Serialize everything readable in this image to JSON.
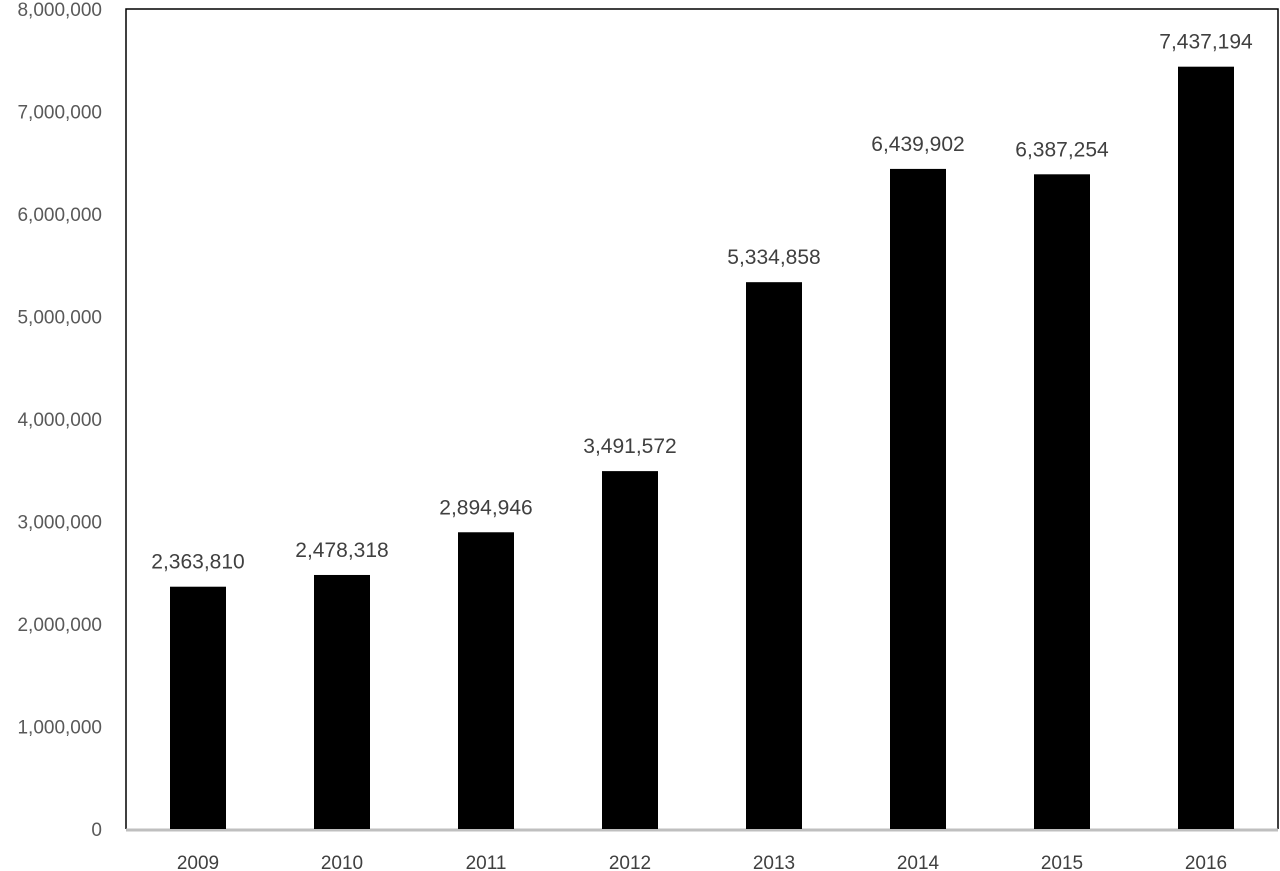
{
  "chart_data": {
    "type": "bar",
    "title": "",
    "xlabel": "",
    "ylabel": "",
    "categories": [
      "2009",
      "2010",
      "2011",
      "2012",
      "2013",
      "2014",
      "2015",
      "2016"
    ],
    "values": [
      2363810,
      2478318,
      2894946,
      3491572,
      5334858,
      6439902,
      6387254,
      7437194
    ],
    "data_labels": [
      "2,363,810",
      "2,478,318",
      "2,894,946",
      "3,491,572",
      "5,334,858",
      "6,439,902",
      "6,387,254",
      "7,437,194"
    ],
    "ylim": [
      0,
      8000000
    ],
    "yticks": [
      0,
      1000000,
      2000000,
      3000000,
      4000000,
      5000000,
      6000000,
      7000000,
      8000000
    ],
    "ytick_labels": [
      "0",
      "1,000,000",
      "2,000,000",
      "3,000,000",
      "4,000,000",
      "5,000,000",
      "6,000,000",
      "7,000,000",
      "8,000,000"
    ],
    "grid": false,
    "legend": false,
    "colors": {
      "bar": "#000000",
      "frame": "#000000",
      "baseline": "#bfbfbf"
    }
  }
}
